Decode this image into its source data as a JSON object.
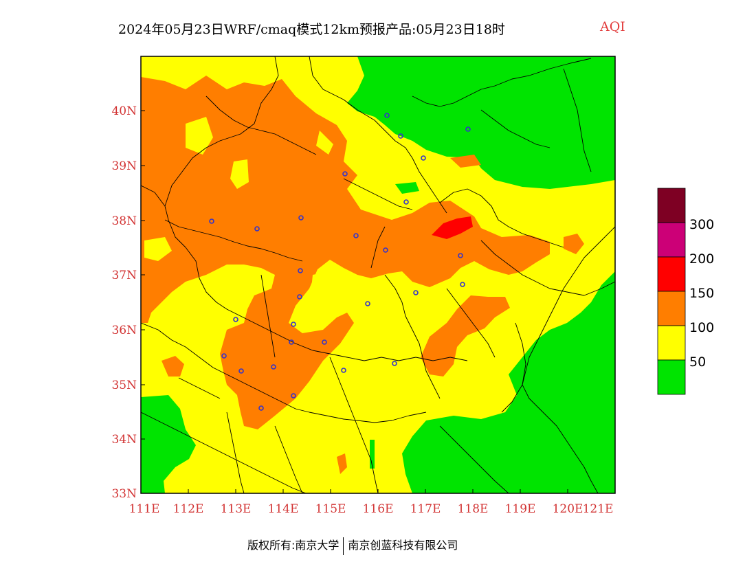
{
  "header": {
    "title": "2024年05月23日WRF/cmaq模式12km预报产品:05月23日18时",
    "product": "AQI"
  },
  "colors": {
    "accent_red": "#e23b3b",
    "label_red": "#d23333",
    "fill_green": "#00e400",
    "fill_yellow": "#ffff00",
    "fill_orange": "#ff7e00",
    "fill_red": "#ff0000",
    "fill_purple": "#cc0077",
    "fill_maroon": "#7e0023",
    "station_marker": "#3333cc"
  },
  "map": {
    "lon_labels": [
      "111E",
      "112E",
      "113E",
      "114E",
      "115E",
      "116E",
      "117E",
      "118E",
      "119E",
      "120E",
      "121E"
    ],
    "lat_labels": [
      "40N",
      "39N",
      "38N",
      "37N",
      "36N",
      "35N",
      "34N",
      "33N"
    ]
  },
  "legend": {
    "labels": [
      "300",
      "200",
      "150",
      "100",
      "50"
    ]
  },
  "footer": {
    "copyright": "版权所有:南京大学",
    "company": "南京创蓝科技有限公司"
  }
}
